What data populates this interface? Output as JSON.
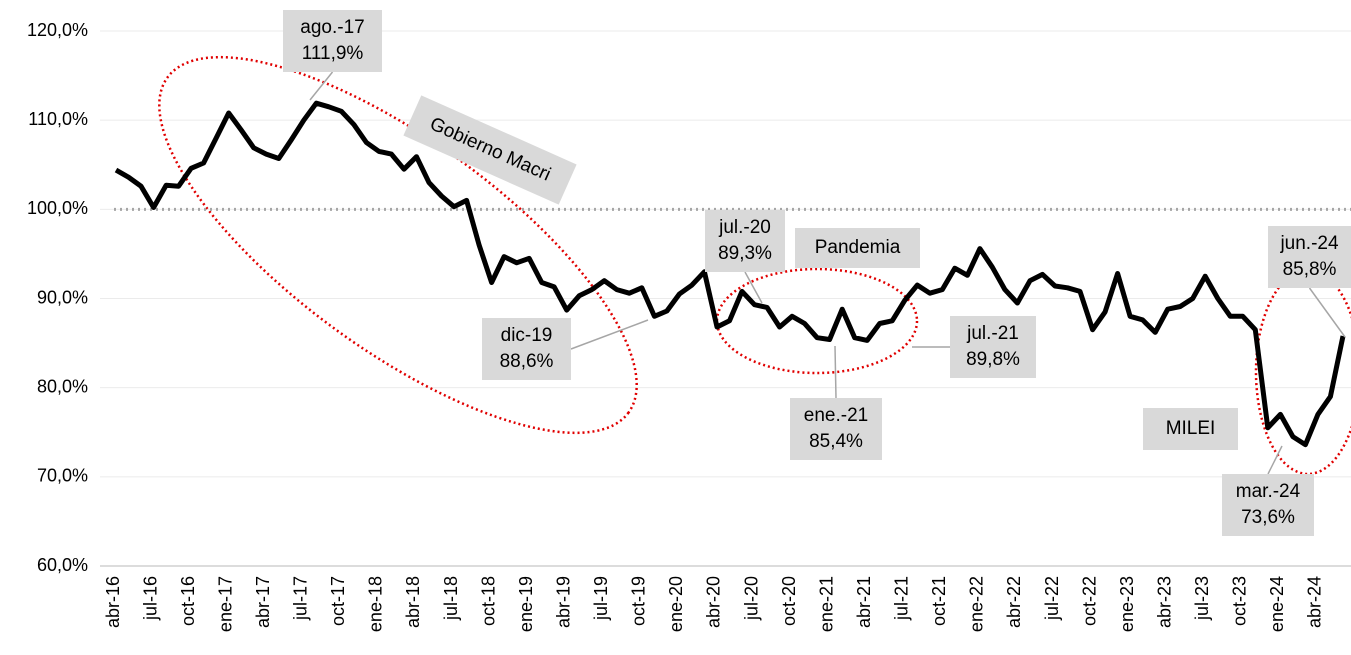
{
  "chart_data": {
    "type": "line",
    "categories": [
      "abr-16",
      null,
      null,
      "jul-16",
      null,
      null,
      "oct-16",
      null,
      null,
      "ene-17",
      null,
      null,
      "abr-17",
      null,
      null,
      "jul-17",
      null,
      null,
      "oct-17",
      null,
      null,
      "ene-18",
      null,
      null,
      "abr-18",
      null,
      null,
      "jul-18",
      null,
      null,
      "oct-18",
      null,
      null,
      "ene-19",
      null,
      null,
      "abr-19",
      null,
      null,
      "jul-19",
      null,
      null,
      "oct-19",
      null,
      null,
      "ene-20",
      null,
      null,
      "abr-20",
      null,
      null,
      "jul-20",
      null,
      null,
      "oct-20",
      null,
      null,
      "ene-21",
      null,
      null,
      "abr-21",
      null,
      null,
      "jul-21",
      null,
      null,
      "oct-21",
      null,
      null,
      "ene-22",
      null,
      null,
      "abr-22",
      null,
      null,
      "jul-22",
      null,
      null,
      "oct-22",
      null,
      null,
      "ene-23",
      null,
      null,
      "abr-23",
      null,
      null,
      "jul-23",
      null,
      null,
      "oct-23",
      null,
      null,
      "ene-24",
      null,
      null,
      "abr-24",
      null,
      null
    ],
    "series": [
      {
        "color": "#000000",
        "values": [
          104.4,
          103.6,
          102.6,
          100.2,
          102.7,
          102.6,
          104.6,
          105.2,
          108.0,
          110.8,
          108.9,
          106.9,
          106.2,
          105.7,
          107.8,
          110.0,
          111.9,
          111.5,
          111.0,
          109.5,
          107.5,
          106.5,
          106.2,
          104.5,
          105.9,
          103.0,
          101.5,
          100.3,
          101.0,
          96.0,
          91.8,
          94.7,
          94.0,
          94.5,
          91.8,
          91.3,
          88.7,
          90.3,
          91.0,
          92.0,
          91.0,
          90.6,
          91.2,
          88.0,
          88.6,
          90.5,
          91.5,
          93.0,
          86.8,
          87.5,
          90.8,
          89.3,
          89.0,
          86.8,
          88.0,
          87.2,
          85.6,
          85.4,
          88.8,
          85.6,
          85.3,
          87.2,
          87.5,
          89.8,
          91.5,
          90.6,
          91.0,
          93.4,
          92.6,
          95.6,
          93.5,
          91.0,
          89.5,
          92.0,
          92.7,
          91.4,
          91.2,
          90.8,
          86.5,
          88.5,
          92.8,
          88.0,
          87.6,
          86.2,
          88.8,
          89.1,
          90.0,
          92.5,
          90.0,
          88.0,
          88.0,
          86.5,
          75.5,
          77.0,
          74.5,
          73.6,
          77.0,
          79.0,
          85.8
        ]
      }
    ],
    "ylim": [
      60,
      120
    ],
    "yticks": [
      {
        "value": 60,
        "label": "60,0%"
      },
      {
        "value": 70,
        "label": "70,0%"
      },
      {
        "value": 80,
        "label": "80,0%"
      },
      {
        "value": 90,
        "label": "90,0%"
      },
      {
        "value": 100,
        "label": "100,0%"
      },
      {
        "value": 110,
        "label": "110,0%"
      },
      {
        "value": 120,
        "label": "120,0%"
      }
    ],
    "grid": true,
    "reference_line": 100,
    "annotations": [
      {
        "lines": [
          "ago.-17",
          "111,9%"
        ]
      },
      {
        "lines": [
          "Gobierno Macri"
        ]
      },
      {
        "lines": [
          "dic-19",
          "88,6%"
        ]
      },
      {
        "lines": [
          "jul.-20",
          "89,3%"
        ]
      },
      {
        "lines": [
          "Pandemia"
        ]
      },
      {
        "lines": [
          "ene.-21",
          "85,4%"
        ]
      },
      {
        "lines": [
          "jul.-21",
          "89,8%"
        ]
      },
      {
        "lines": [
          "MILEI"
        ]
      },
      {
        "lines": [
          "jun.-24",
          "85,8%"
        ]
      },
      {
        "lines": [
          "mar.-24",
          "73,6%"
        ]
      }
    ]
  }
}
